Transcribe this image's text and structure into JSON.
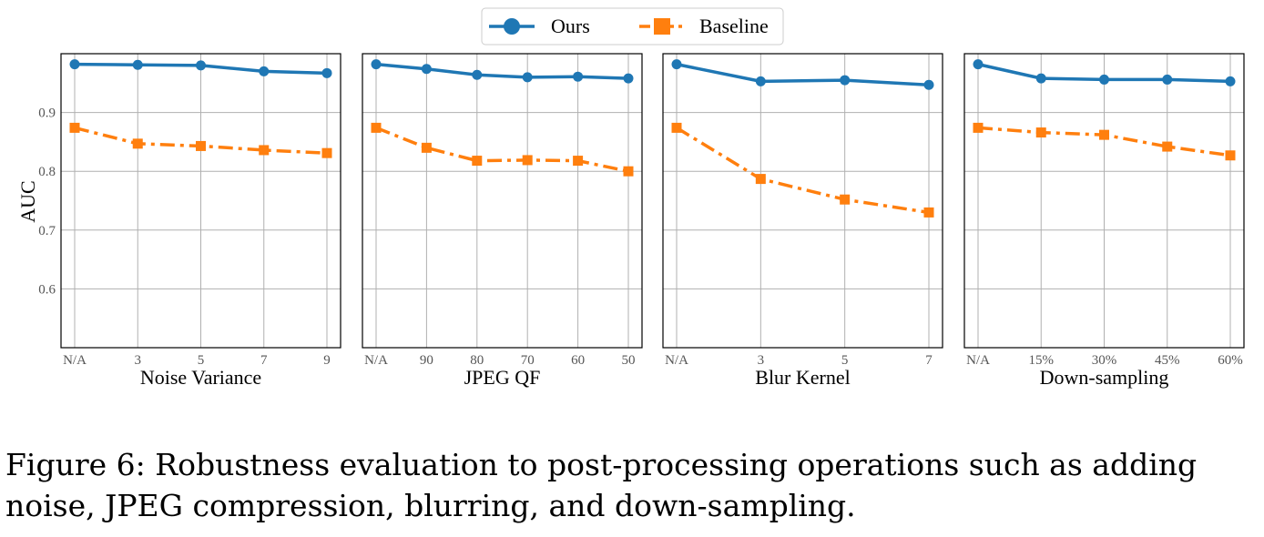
{
  "colors": {
    "ours": "#1f77b4",
    "baseline": "#ff7f0e",
    "grid": "#b0b0b0",
    "axis": "#000000"
  },
  "legend": {
    "placement": "top-center",
    "items": [
      {
        "label": "Ours",
        "marker": "circle",
        "linestyle": "solid",
        "color": "#1f77b4"
      },
      {
        "label": "Baseline",
        "marker": "square",
        "linestyle": "dashdot",
        "color": "#ff7f0e"
      }
    ]
  },
  "ylabel": "AUC",
  "caption": "Figure 6: Robustness evaluation to post-processing operations such as adding noise, JPEG compression, blurring, and down-sampling.",
  "chart_data": [
    {
      "type": "line",
      "xlabel": "Noise Variance",
      "ylabel": "AUC",
      "categories": [
        "N/A",
        "3",
        "5",
        "7",
        "9"
      ],
      "ylim": [
        0.5,
        1.0
      ],
      "yticks": [
        "0.6",
        "0.7",
        "0.8",
        "0.9"
      ],
      "grid": true,
      "series": [
        {
          "name": "Ours",
          "values": [
            0.982,
            0.981,
            0.98,
            0.97,
            0.967
          ]
        },
        {
          "name": "Baseline",
          "values": [
            0.874,
            0.847,
            0.843,
            0.836,
            0.831
          ]
        }
      ]
    },
    {
      "type": "line",
      "xlabel": "JPEG QF",
      "ylabel": "",
      "categories": [
        "N/A",
        "90",
        "80",
        "70",
        "60",
        "50"
      ],
      "ylim": [
        0.5,
        1.0
      ],
      "yticks": [
        "0.6",
        "0.7",
        "0.8",
        "0.9"
      ],
      "grid": true,
      "series": [
        {
          "name": "Ours",
          "values": [
            0.982,
            0.974,
            0.964,
            0.96,
            0.961,
            0.958
          ]
        },
        {
          "name": "Baseline",
          "values": [
            0.874,
            0.84,
            0.818,
            0.819,
            0.818,
            0.8
          ]
        }
      ]
    },
    {
      "type": "line",
      "xlabel": "Blur Kernel",
      "ylabel": "",
      "categories": [
        "N/A",
        "3",
        "5",
        "7"
      ],
      "ylim": [
        0.5,
        1.0
      ],
      "yticks": [
        "0.6",
        "0.7",
        "0.8",
        "0.9"
      ],
      "grid": true,
      "series": [
        {
          "name": "Ours",
          "values": [
            0.982,
            0.953,
            0.955,
            0.947
          ]
        },
        {
          "name": "Baseline",
          "values": [
            0.874,
            0.787,
            0.752,
            0.73
          ]
        }
      ]
    },
    {
      "type": "line",
      "xlabel": "Down-sampling",
      "ylabel": "",
      "categories": [
        "N/A",
        "15%",
        "30%",
        "45%",
        "60%"
      ],
      "ylim": [
        0.5,
        1.0
      ],
      "yticks": [
        "0.6",
        "0.7",
        "0.8",
        "0.9"
      ],
      "grid": true,
      "series": [
        {
          "name": "Ours",
          "values": [
            0.982,
            0.958,
            0.956,
            0.956,
            0.953
          ]
        },
        {
          "name": "Baseline",
          "values": [
            0.874,
            0.866,
            0.862,
            0.842,
            0.827
          ]
        }
      ]
    }
  ]
}
